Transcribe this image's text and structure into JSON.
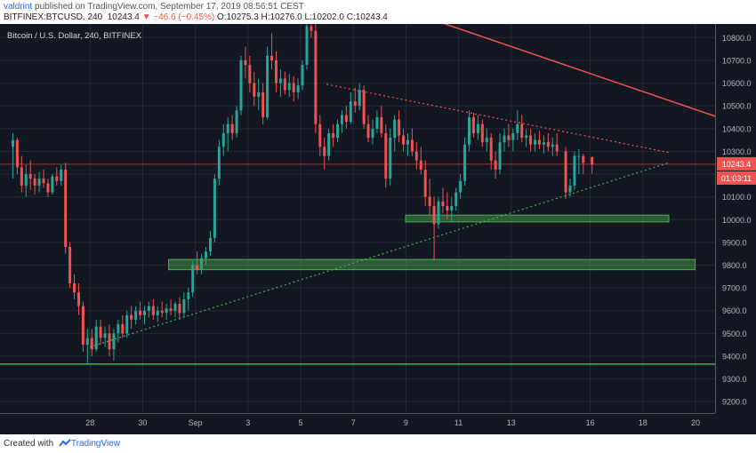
{
  "header": {
    "author": "valdrint",
    "published_text": "published on TradingView.com, September 17, 2019 08:56:51 CEST",
    "symbol": "BITFINEX:BTCUSD, 240",
    "last": "10243.4",
    "change": "▼ −46.6 (−0.45%)",
    "ohlc": "O:10275.3 H:10276.0 L:10202.0 C:10243.4"
  },
  "chart_data": {
    "type": "candlestick",
    "title": "Bitcoin / U.S. Dollar, 240, BITFINEX",
    "x_tick_labels": [
      "28",
      "30",
      "Sep",
      "3",
      "5",
      "7",
      "9",
      "11",
      "13",
      "16",
      "18",
      "20"
    ],
    "y_tick_labels": [
      "10800.0",
      "10700.0",
      "10600.0",
      "10500.0",
      "10400.0",
      "10300.0",
      "10200.0",
      "10100.0",
      "10000.0",
      "9900.0",
      "9800.0",
      "9700.0",
      "9600.0",
      "9500.0",
      "9400.0",
      "9300.0",
      "9200.0"
    ],
    "ylim": [
      9150,
      10860
    ],
    "up_color": "#26a69a",
    "down_color": "#ef5350",
    "price_label": "10243.4",
    "countdown_label": "01:03:11",
    "horizontal_lines": [
      {
        "price": 10243.4,
        "color": "#ef5350",
        "style": "solid"
      },
      {
        "price": 9365,
        "color": "#4caf50",
        "style": "solid"
      }
    ],
    "zones": [
      {
        "from_price": 9990,
        "to_price": 10020,
        "from_date": "2019-09-10",
        "to_date": "2019-09-20",
        "color": "#4caf50"
      },
      {
        "from_price": 9780,
        "to_price": 9825,
        "from_date": "2019-09-01",
        "to_date": "2019-09-21",
        "color": "#4caf50"
      }
    ],
    "trendlines": [
      {
        "from_date": "2019-08-29",
        "from_price": 9440,
        "to_date": "2019-09-20",
        "to_price": 10250,
        "color": "#4caf50",
        "style": "dotted"
      },
      {
        "from_date": "2019-09-07",
        "from_price": 10595,
        "to_date": "2019-09-20",
        "to_price": 10295,
        "color": "#ef5350",
        "style": "dotted"
      },
      {
        "from_date": "2019-09-11",
        "from_price": 10880,
        "to_date": "2019-09-22",
        "to_price": 10445,
        "color": "#ef5350",
        "style": "solid"
      }
    ],
    "candles": [
      {
        "d": "2019-08-26",
        "o": 10320,
        "h": 10380,
        "l": 10180,
        "c": 10350
      },
      {
        "d": "2019-08-26",
        "o": 10350,
        "h": 10360,
        "l": 10200,
        "c": 10230
      },
      {
        "d": "2019-08-26",
        "o": 10230,
        "h": 10280,
        "l": 10120,
        "c": 10150
      },
      {
        "d": "2019-08-26",
        "o": 10150,
        "h": 10240,
        "l": 10100,
        "c": 10200
      },
      {
        "d": "2019-08-26",
        "o": 10200,
        "h": 10260,
        "l": 10130,
        "c": 10180
      },
      {
        "d": "2019-08-26",
        "o": 10180,
        "h": 10200,
        "l": 10110,
        "c": 10150
      },
      {
        "d": "2019-08-27",
        "o": 10150,
        "h": 10210,
        "l": 10120,
        "c": 10180
      },
      {
        "d": "2019-08-27",
        "o": 10180,
        "h": 10220,
        "l": 10140,
        "c": 10160
      },
      {
        "d": "2019-08-27",
        "o": 10160,
        "h": 10180,
        "l": 10100,
        "c": 10120
      },
      {
        "d": "2019-08-27",
        "o": 10120,
        "h": 10200,
        "l": 10110,
        "c": 10190
      },
      {
        "d": "2019-08-27",
        "o": 10190,
        "h": 10230,
        "l": 10150,
        "c": 10170
      },
      {
        "d": "2019-08-27",
        "o": 10170,
        "h": 10240,
        "l": 10150,
        "c": 10220
      },
      {
        "d": "2019-08-28",
        "o": 10220,
        "h": 10250,
        "l": 9850,
        "c": 9880
      },
      {
        "d": "2019-08-28",
        "o": 9880,
        "h": 9900,
        "l": 9700,
        "c": 9720
      },
      {
        "d": "2019-08-28",
        "o": 9720,
        "h": 9760,
        "l": 9650,
        "c": 9680
      },
      {
        "d": "2019-08-28",
        "o": 9680,
        "h": 9720,
        "l": 9580,
        "c": 9620
      },
      {
        "d": "2019-08-28",
        "o": 9620,
        "h": 9640,
        "l": 9420,
        "c": 9450
      },
      {
        "d": "2019-08-28",
        "o": 9450,
        "h": 9520,
        "l": 9370,
        "c": 9480
      },
      {
        "d": "2019-08-29",
        "o": 9480,
        "h": 9520,
        "l": 9400,
        "c": 9430
      },
      {
        "d": "2019-08-29",
        "o": 9430,
        "h": 9560,
        "l": 9420,
        "c": 9530
      },
      {
        "d": "2019-08-29",
        "o": 9530,
        "h": 9560,
        "l": 9450,
        "c": 9480
      },
      {
        "d": "2019-08-29",
        "o": 9480,
        "h": 9530,
        "l": 9440,
        "c": 9500
      },
      {
        "d": "2019-08-29",
        "o": 9500,
        "h": 9540,
        "l": 9400,
        "c": 9430
      },
      {
        "d": "2019-08-29",
        "o": 9430,
        "h": 9520,
        "l": 9380,
        "c": 9500
      },
      {
        "d": "2019-08-30",
        "o": 9500,
        "h": 9560,
        "l": 9460,
        "c": 9540
      },
      {
        "d": "2019-08-30",
        "o": 9540,
        "h": 9580,
        "l": 9480,
        "c": 9500
      },
      {
        "d": "2019-08-30",
        "o": 9500,
        "h": 9600,
        "l": 9480,
        "c": 9580
      },
      {
        "d": "2019-08-30",
        "o": 9580,
        "h": 9620,
        "l": 9520,
        "c": 9560
      },
      {
        "d": "2019-08-30",
        "o": 9560,
        "h": 9620,
        "l": 9540,
        "c": 9600
      },
      {
        "d": "2019-08-30",
        "o": 9600,
        "h": 9640,
        "l": 9560,
        "c": 9580
      },
      {
        "d": "2019-08-31",
        "o": 9580,
        "h": 9620,
        "l": 9540,
        "c": 9600
      },
      {
        "d": "2019-08-31",
        "o": 9600,
        "h": 9640,
        "l": 9570,
        "c": 9620
      },
      {
        "d": "2019-08-31",
        "o": 9620,
        "h": 9650,
        "l": 9560,
        "c": 9580
      },
      {
        "d": "2019-08-31",
        "o": 9580,
        "h": 9620,
        "l": 9550,
        "c": 9600
      },
      {
        "d": "2019-08-31",
        "o": 9600,
        "h": 9640,
        "l": 9570,
        "c": 9590
      },
      {
        "d": "2019-08-31",
        "o": 9590,
        "h": 9630,
        "l": 9560,
        "c": 9610
      },
      {
        "d": "2019-09-01",
        "o": 9610,
        "h": 9650,
        "l": 9580,
        "c": 9600
      },
      {
        "d": "2019-09-01",
        "o": 9600,
        "h": 9640,
        "l": 9570,
        "c": 9630
      },
      {
        "d": "2019-09-01",
        "o": 9630,
        "h": 9660,
        "l": 9560,
        "c": 9590
      },
      {
        "d": "2019-09-01",
        "o": 9590,
        "h": 9680,
        "l": 9570,
        "c": 9650
      },
      {
        "d": "2019-09-01",
        "o": 9650,
        "h": 9700,
        "l": 9600,
        "c": 9680
      },
      {
        "d": "2019-09-01",
        "o": 9680,
        "h": 9820,
        "l": 9660,
        "c": 9800
      },
      {
        "d": "2019-09-02",
        "o": 9800,
        "h": 9860,
        "l": 9760,
        "c": 9780
      },
      {
        "d": "2019-09-02",
        "o": 9780,
        "h": 9850,
        "l": 9760,
        "c": 9830
      },
      {
        "d": "2019-09-02",
        "o": 9830,
        "h": 9880,
        "l": 9800,
        "c": 9860
      },
      {
        "d": "2019-09-02",
        "o": 9860,
        "h": 9950,
        "l": 9840,
        "c": 9920
      },
      {
        "d": "2019-09-02",
        "o": 9920,
        "h": 10200,
        "l": 9900,
        "c": 10180
      },
      {
        "d": "2019-09-02",
        "o": 10180,
        "h": 10350,
        "l": 10150,
        "c": 10320
      },
      {
        "d": "2019-09-03",
        "o": 10320,
        "h": 10420,
        "l": 10280,
        "c": 10380
      },
      {
        "d": "2019-09-03",
        "o": 10380,
        "h": 10450,
        "l": 10300,
        "c": 10420
      },
      {
        "d": "2019-09-03",
        "o": 10420,
        "h": 10460,
        "l": 10350,
        "c": 10380
      },
      {
        "d": "2019-09-03",
        "o": 10380,
        "h": 10500,
        "l": 10360,
        "c": 10480
      },
      {
        "d": "2019-09-03",
        "o": 10480,
        "h": 10720,
        "l": 10460,
        "c": 10700
      },
      {
        "d": "2019-09-03",
        "o": 10700,
        "h": 10760,
        "l": 10620,
        "c": 10680
      },
      {
        "d": "2019-09-04",
        "o": 10680,
        "h": 10720,
        "l": 10560,
        "c": 10600
      },
      {
        "d": "2019-09-04",
        "o": 10600,
        "h": 10650,
        "l": 10500,
        "c": 10540
      },
      {
        "d": "2019-09-04",
        "o": 10540,
        "h": 10620,
        "l": 10480,
        "c": 10560
      },
      {
        "d": "2019-09-04",
        "o": 10560,
        "h": 10600,
        "l": 10420,
        "c": 10450
      },
      {
        "d": "2019-09-04",
        "o": 10450,
        "h": 10760,
        "l": 10440,
        "c": 10720
      },
      {
        "d": "2019-09-04",
        "o": 10720,
        "h": 10820,
        "l": 10660,
        "c": 10700
      },
      {
        "d": "2019-09-05",
        "o": 10700,
        "h": 10740,
        "l": 10560,
        "c": 10600
      },
      {
        "d": "2019-09-05",
        "o": 10600,
        "h": 10660,
        "l": 10540,
        "c": 10620
      },
      {
        "d": "2019-09-05",
        "o": 10620,
        "h": 10650,
        "l": 10550,
        "c": 10570
      },
      {
        "d": "2019-09-05",
        "o": 10570,
        "h": 10640,
        "l": 10540,
        "c": 10600
      },
      {
        "d": "2019-09-05",
        "o": 10600,
        "h": 10630,
        "l": 10520,
        "c": 10560
      },
      {
        "d": "2019-09-05",
        "o": 10560,
        "h": 10620,
        "l": 10530,
        "c": 10590
      },
      {
        "d": "2019-09-06",
        "o": 10590,
        "h": 10700,
        "l": 10570,
        "c": 10680
      },
      {
        "d": "2019-09-06",
        "o": 10680,
        "h": 10860,
        "l": 10660,
        "c": 10850
      },
      {
        "d": "2019-09-06",
        "o": 10850,
        "h": 10860,
        "l": 10800,
        "c": 10830
      },
      {
        "d": "2019-09-06",
        "o": 10830,
        "h": 10860,
        "l": 10380,
        "c": 10420
      },
      {
        "d": "2019-09-06",
        "o": 10420,
        "h": 10460,
        "l": 10280,
        "c": 10320
      },
      {
        "d": "2019-09-06",
        "o": 10320,
        "h": 10360,
        "l": 10220,
        "c": 10280
      },
      {
        "d": "2019-09-07",
        "o": 10280,
        "h": 10400,
        "l": 10260,
        "c": 10380
      },
      {
        "d": "2019-09-07",
        "o": 10380,
        "h": 10420,
        "l": 10320,
        "c": 10360
      },
      {
        "d": "2019-09-07",
        "o": 10360,
        "h": 10440,
        "l": 10340,
        "c": 10420
      },
      {
        "d": "2019-09-07",
        "o": 10420,
        "h": 10480,
        "l": 10380,
        "c": 10460
      },
      {
        "d": "2019-09-07",
        "o": 10460,
        "h": 10500,
        "l": 10400,
        "c": 10430
      },
      {
        "d": "2019-09-07",
        "o": 10430,
        "h": 10560,
        "l": 10420,
        "c": 10520
      },
      {
        "d": "2019-09-08",
        "o": 10520,
        "h": 10580,
        "l": 10470,
        "c": 10500
      },
      {
        "d": "2019-09-08",
        "o": 10500,
        "h": 10600,
        "l": 10480,
        "c": 10570
      },
      {
        "d": "2019-09-08",
        "o": 10570,
        "h": 10590,
        "l": 10400,
        "c": 10420
      },
      {
        "d": "2019-09-08",
        "o": 10420,
        "h": 10460,
        "l": 10340,
        "c": 10360
      },
      {
        "d": "2019-09-08",
        "o": 10360,
        "h": 10440,
        "l": 10330,
        "c": 10400
      },
      {
        "d": "2019-09-08",
        "o": 10400,
        "h": 10480,
        "l": 10380,
        "c": 10450
      },
      {
        "d": "2019-09-09",
        "o": 10450,
        "h": 10500,
        "l": 10360,
        "c": 10380
      },
      {
        "d": "2019-09-09",
        "o": 10380,
        "h": 10420,
        "l": 10140,
        "c": 10180
      },
      {
        "d": "2019-09-09",
        "o": 10180,
        "h": 10400,
        "l": 10150,
        "c": 10360
      },
      {
        "d": "2019-09-09",
        "o": 10360,
        "h": 10460,
        "l": 10300,
        "c": 10440
      },
      {
        "d": "2019-09-09",
        "o": 10440,
        "h": 10480,
        "l": 10340,
        "c": 10370
      },
      {
        "d": "2019-09-09",
        "o": 10370,
        "h": 10400,
        "l": 10300,
        "c": 10330
      },
      {
        "d": "2019-09-10",
        "o": 10330,
        "h": 10380,
        "l": 10280,
        "c": 10350
      },
      {
        "d": "2019-09-10",
        "o": 10350,
        "h": 10400,
        "l": 10280,
        "c": 10300
      },
      {
        "d": "2019-09-10",
        "o": 10300,
        "h": 10340,
        "l": 10220,
        "c": 10260
      },
      {
        "d": "2019-09-10",
        "o": 10260,
        "h": 10320,
        "l": 10200,
        "c": 10220
      },
      {
        "d": "2019-09-10",
        "o": 10220,
        "h": 10260,
        "l": 10060,
        "c": 10100
      },
      {
        "d": "2019-09-10",
        "o": 10100,
        "h": 10180,
        "l": 10020,
        "c": 10060
      },
      {
        "d": "2019-09-11",
        "o": 10060,
        "h": 10100,
        "l": 9820,
        "c": 9980
      },
      {
        "d": "2019-09-11",
        "o": 9980,
        "h": 10100,
        "l": 9960,
        "c": 10080
      },
      {
        "d": "2019-09-11",
        "o": 10080,
        "h": 10140,
        "l": 10030,
        "c": 10060
      },
      {
        "d": "2019-09-11",
        "o": 10060,
        "h": 10120,
        "l": 10000,
        "c": 10040
      },
      {
        "d": "2019-09-11",
        "o": 10040,
        "h": 10100,
        "l": 9990,
        "c": 10060
      },
      {
        "d": "2019-09-11",
        "o": 10060,
        "h": 10140,
        "l": 10040,
        "c": 10120
      },
      {
        "d": "2019-09-12",
        "o": 10120,
        "h": 10200,
        "l": 10090,
        "c": 10170
      },
      {
        "d": "2019-09-12",
        "o": 10170,
        "h": 10360,
        "l": 10150,
        "c": 10330
      },
      {
        "d": "2019-09-12",
        "o": 10330,
        "h": 10480,
        "l": 10300,
        "c": 10450
      },
      {
        "d": "2019-09-12",
        "o": 10450,
        "h": 10470,
        "l": 10360,
        "c": 10380
      },
      {
        "d": "2019-09-12",
        "o": 10380,
        "h": 10460,
        "l": 10350,
        "c": 10420
      },
      {
        "d": "2019-09-12",
        "o": 10420,
        "h": 10440,
        "l": 10320,
        "c": 10340
      },
      {
        "d": "2019-09-13",
        "o": 10340,
        "h": 10400,
        "l": 10300,
        "c": 10360
      },
      {
        "d": "2019-09-13",
        "o": 10360,
        "h": 10380,
        "l": 10220,
        "c": 10260
      },
      {
        "d": "2019-09-13",
        "o": 10260,
        "h": 10300,
        "l": 10180,
        "c": 10220
      },
      {
        "d": "2019-09-13",
        "o": 10220,
        "h": 10380,
        "l": 10200,
        "c": 10340
      },
      {
        "d": "2019-09-13",
        "o": 10340,
        "h": 10400,
        "l": 10300,
        "c": 10370
      },
      {
        "d": "2019-09-13",
        "o": 10370,
        "h": 10420,
        "l": 10320,
        "c": 10350
      },
      {
        "d": "2019-09-14",
        "o": 10350,
        "h": 10400,
        "l": 10300,
        "c": 10380
      },
      {
        "d": "2019-09-14",
        "o": 10380,
        "h": 10480,
        "l": 10350,
        "c": 10420
      },
      {
        "d": "2019-09-14",
        "o": 10420,
        "h": 10460,
        "l": 10340,
        "c": 10360
      },
      {
        "d": "2019-09-14",
        "o": 10360,
        "h": 10400,
        "l": 10320,
        "c": 10370
      },
      {
        "d": "2019-09-14",
        "o": 10370,
        "h": 10400,
        "l": 10300,
        "c": 10330
      },
      {
        "d": "2019-09-14",
        "o": 10330,
        "h": 10380,
        "l": 10300,
        "c": 10350
      },
      {
        "d": "2019-09-15",
        "o": 10350,
        "h": 10390,
        "l": 10310,
        "c": 10330
      },
      {
        "d": "2019-09-15",
        "o": 10330,
        "h": 10370,
        "l": 10290,
        "c": 10340
      },
      {
        "d": "2019-09-15",
        "o": 10340,
        "h": 10380,
        "l": 10300,
        "c": 10320
      },
      {
        "d": "2019-09-15",
        "o": 10320,
        "h": 10360,
        "l": 10280,
        "c": 10330
      },
      {
        "d": "2019-09-15",
        "o": 10330,
        "h": 10380,
        "l": 10280,
        "c": 10300
      },
      {
        "d": "2019-09-16",
        "o": 10300,
        "h": 10320,
        "l": 10090,
        "c": 10120
      },
      {
        "d": "2019-09-16",
        "o": 10120,
        "h": 10180,
        "l": 10100,
        "c": 10150
      },
      {
        "d": "2019-09-16",
        "o": 10150,
        "h": 10300,
        "l": 10130,
        "c": 10280
      },
      {
        "d": "2019-09-16",
        "o": 10280,
        "h": 10310,
        "l": 10200,
        "c": 10280
      },
      {
        "d": "2019-09-16",
        "o": 10280,
        "h": 10290,
        "l": 10200,
        "c": 10250
      },
      {
        "d": "2019-09-17",
        "o": 10275.3,
        "h": 10276,
        "l": 10202,
        "c": 10243.4
      }
    ]
  }
}
